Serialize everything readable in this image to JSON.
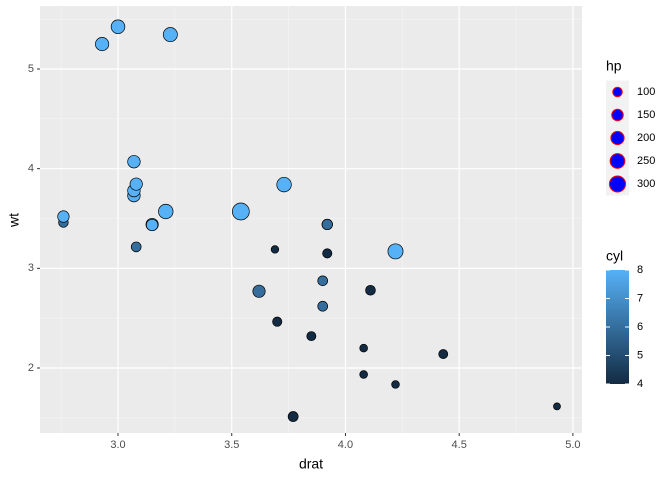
{
  "chart_data": {
    "type": "scatter",
    "x_label": "drat",
    "y_label": "wt",
    "x": [
      3.9,
      3.9,
      3.85,
      3.08,
      3.15,
      2.76,
      3.21,
      3.69,
      3.92,
      3.92,
      3.92,
      3.07,
      3.07,
      3.07,
      2.93,
      3.0,
      3.23,
      4.08,
      4.93,
      4.22,
      3.7,
      2.76,
      3.15,
      3.73,
      3.08,
      4.08,
      4.43,
      3.77,
      4.22,
      3.62,
      3.54,
      4.11
    ],
    "values": [
      2.62,
      2.875,
      2.32,
      3.215,
      3.44,
      3.46,
      3.57,
      3.19,
      3.15,
      3.44,
      3.44,
      4.07,
      3.73,
      3.78,
      5.25,
      5.424,
      5.345,
      2.2,
      1.615,
      1.835,
      2.465,
      3.52,
      3.435,
      3.84,
      3.845,
      1.935,
      2.14,
      1.513,
      3.17,
      2.77,
      3.57,
      2.78
    ],
    "size": [
      110,
      110,
      93,
      110,
      175,
      105,
      245,
      62,
      95,
      123,
      123,
      180,
      180,
      180,
      205,
      215,
      230,
      66,
      52,
      65,
      97,
      150,
      150,
      245,
      175,
      66,
      91,
      113,
      264,
      175,
      335,
      109
    ],
    "fill": [
      6,
      6,
      4,
      6,
      8,
      6,
      8,
      4,
      4,
      6,
      6,
      8,
      8,
      8,
      8,
      8,
      8,
      4,
      4,
      4,
      4,
      8,
      8,
      8,
      8,
      4,
      4,
      4,
      8,
      6,
      8,
      4
    ],
    "xlim": [
      2.657,
      5.04
    ],
    "ylim": [
      1.348,
      5.632
    ],
    "xticks": [
      {
        "value": 3,
        "label": "3.0"
      },
      {
        "value": 3.5,
        "label": "3.5"
      },
      {
        "value": 4,
        "label": "4.0"
      },
      {
        "value": 4.5,
        "label": "4.5"
      },
      {
        "value": 5,
        "label": "5.0"
      }
    ],
    "yticks": [
      2,
      3,
      4,
      5
    ],
    "grid": true,
    "fill_low": "#132B43",
    "fill_high": "#56B1F7",
    "size_legend": {
      "title": "hp",
      "breaks": [
        100,
        150,
        200,
        250,
        300
      ],
      "fill": "blue",
      "stroke": "red"
    },
    "fill_legend": {
      "title": "cyl",
      "lim": [
        4,
        8
      ],
      "breaks": [
        4,
        5,
        6,
        7,
        8
      ]
    },
    "legend_position": "right"
  }
}
